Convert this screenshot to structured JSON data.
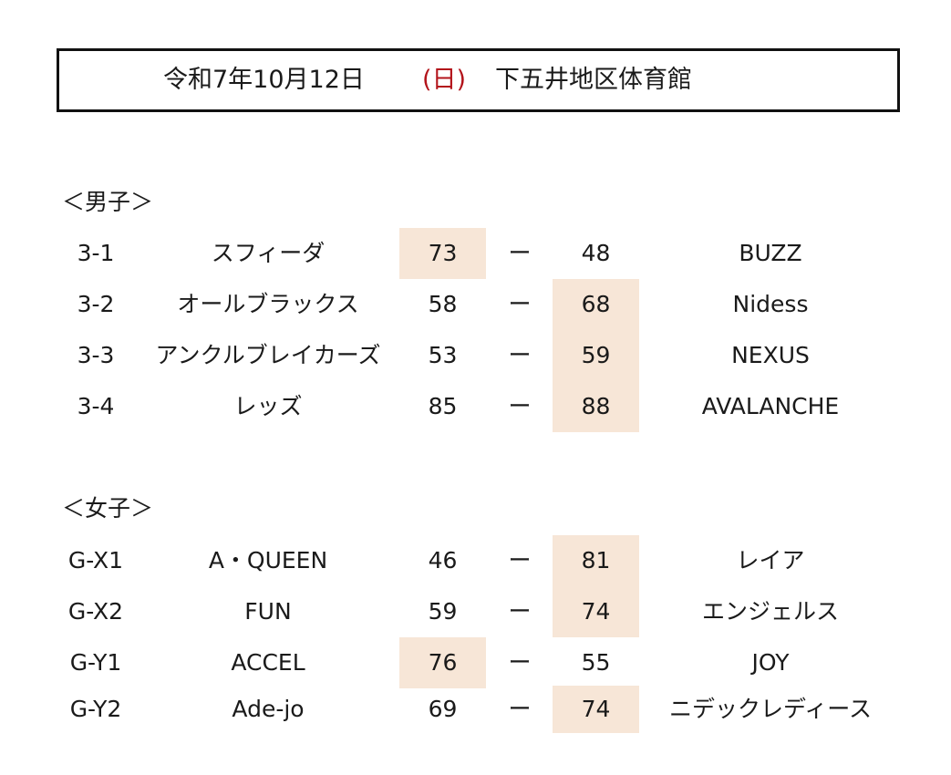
{
  "header": {
    "date": "令和7年10月12日",
    "day": "(日)",
    "venue": "下五井地区体育館"
  },
  "colors": {
    "day_text": "#b3141b",
    "winner_highlight": "#f7e6d7",
    "border": "#111111"
  },
  "sections": {
    "men": {
      "label": "＜男子＞",
      "games": [
        {
          "id": "3-1",
          "home": "スフィーダ",
          "home_score": "73",
          "sep": "ー",
          "away_score": "48",
          "away": "BUZZ",
          "winner": "home"
        },
        {
          "id": "3-2",
          "home": "オールブラックス",
          "home_score": "58",
          "sep": "ー",
          "away_score": "68",
          "away": "Nidess",
          "winner": "away"
        },
        {
          "id": "3-3",
          "home": "アンクルブレイカーズ",
          "home_score": "53",
          "sep": "ー",
          "away_score": "59",
          "away": "NEXUS",
          "winner": "away"
        },
        {
          "id": "3-4",
          "home": "レッズ",
          "home_score": "85",
          "sep": "ー",
          "away_score": "88",
          "away": "AVALANCHE",
          "winner": "away"
        }
      ]
    },
    "women": {
      "label": "＜女子＞",
      "games": [
        {
          "id": "G-X1",
          "home": "A・QUEEN",
          "home_score": "46",
          "sep": "ー",
          "away_score": "81",
          "away": "レイア",
          "winner": "away"
        },
        {
          "id": "G-X2",
          "home": "FUN",
          "home_score": "59",
          "sep": "ー",
          "away_score": "74",
          "away": "エンジェルス",
          "winner": "away"
        },
        {
          "id": "G-Y1",
          "home": "ACCEL",
          "home_score": "76",
          "sep": "ー",
          "away_score": "55",
          "away": "JOY",
          "winner": "home"
        },
        {
          "id": "G-Y2",
          "home": "Ade-jo",
          "home_score": "69",
          "sep": "ー",
          "away_score": "74",
          "away": "ニデックレディース",
          "winner": "away"
        }
      ]
    }
  }
}
